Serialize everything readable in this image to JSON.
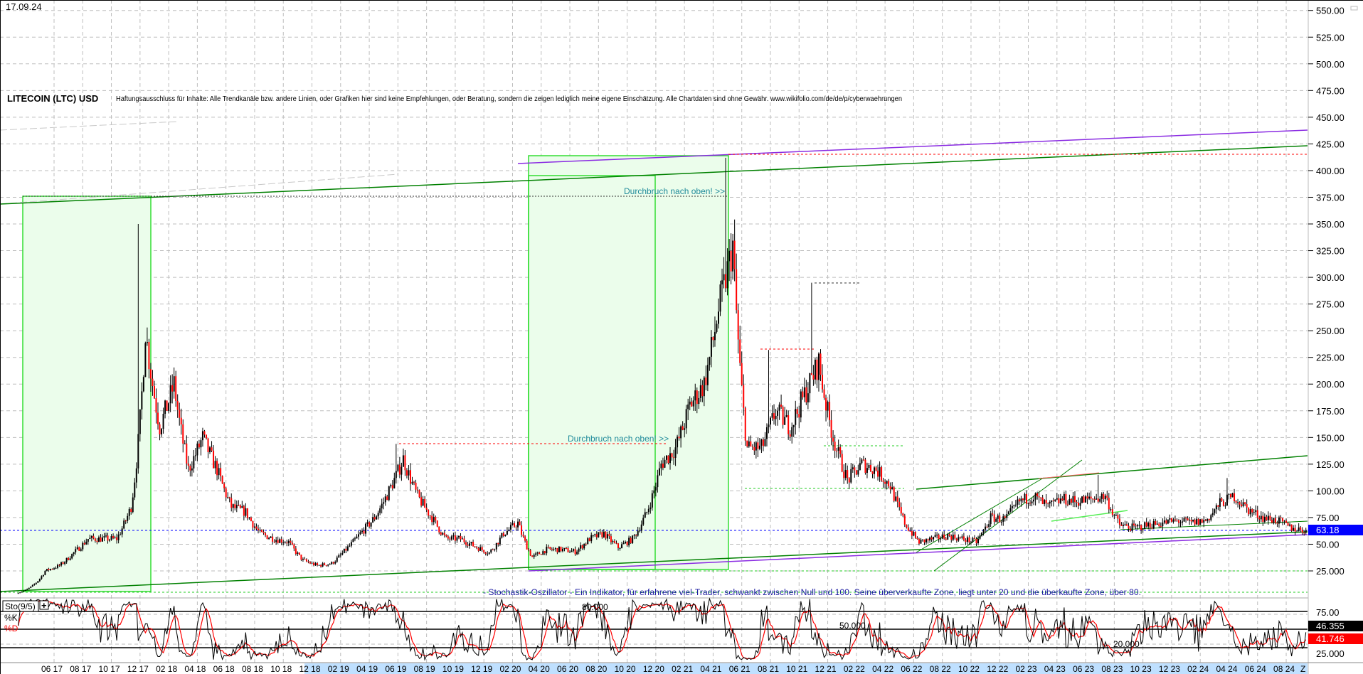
{
  "header": {
    "date": "17.09.24",
    "title": "LITECOIN (LTC) USD",
    "disclaimer": "Haftungsausschluss für Inhalte: Alle Trendkanäle bzw. andere Linien, oder Grafiken hier sind keine Empfehlungen, oder Beratung, sondern die zeigen lediglich meine eigene Einschätzung. Alle Chartdaten sind ohne Gewähr.  www.wikifolio.com/de/de/p/cyberwaehrungen"
  },
  "annotations": {
    "breakout_upper": "Durchbruch nach oben! >>",
    "breakout_lower": "Durchbruch nach oben! >>",
    "stoch_note": "- Stochastik-Oszillator - Ein Indikator, für erfahrene viel-Trader, schwankt zwischen Null und 100. Seine überverkaufte Zone, liegt unter 20 und die überkaufte Zone, über 80.",
    "level_80": "80.000",
    "level_50": "50.000",
    "level_20": "20.000"
  },
  "colors": {
    "up": "#000000",
    "down": "#ff0000",
    "zone_fill": "#ebfdeb",
    "zone_border": "#33dd33",
    "trend_green": "#008000",
    "trend_purple": "#8a2be2",
    "last_price_bg": "#0000ff",
    "k_line": "#000000",
    "d_line": "#ff0000"
  },
  "chart_data": [
    {
      "type": "candlestick",
      "title": "LITECOIN (LTC) USD",
      "ylim": [
        0,
        560
      ],
      "y_ticks": [
        "550.00",
        "525.00",
        "500.00",
        "475.00",
        "450.00",
        "425.00",
        "400.00",
        "375.00",
        "350.00",
        "325.00",
        "300.00",
        "275.00",
        "250.00",
        "225.00",
        "200.00",
        "175.00",
        "150.00",
        "125.00",
        "100.00",
        "75.00",
        "50.00",
        "25.000"
      ],
      "x_ticks": [
        "06 17",
        "08 17",
        "10 17",
        "12 17",
        "02 18",
        "04 18",
        "06 18",
        "08 18",
        "10 18",
        "12 18",
        "02 19",
        "04 19",
        "06 19",
        "08 19",
        "10 19",
        "12 19",
        "02 20",
        "04 20",
        "06 20",
        "08 20",
        "10 20",
        "12 20",
        "02 21",
        "04 21",
        "06 21",
        "08 21",
        "10 21",
        "12 21",
        "02 22",
        "04 22",
        "06 22",
        "08 22",
        "10 22",
        "12 22",
        "02 23",
        "04 23",
        "06 23",
        "08 23",
        "10 23",
        "12 23",
        "02 24",
        "04 24",
        "06 24",
        "08 24"
      ],
      "x_end_label": "Z",
      "grid": true,
      "last_price": "63.18",
      "monthly_start": "2017-03",
      "monthly_close_approx": [
        4,
        10,
        25,
        30,
        42,
        55,
        55,
        55,
        85,
        250,
        160,
        200,
        120,
        150,
        120,
        85,
        80,
        60,
        55,
        52,
        35,
        30,
        32,
        45,
        60,
        75,
        100,
        130,
        95,
        75,
        55,
        55,
        48,
        42,
        60,
        70,
        38,
        45,
        45,
        43,
        55,
        60,
        47,
        55,
        80,
        125,
        140,
        180,
        200,
        270,
        330,
        140,
        140,
        175,
        160,
        190,
        220,
        150,
        110,
        125,
        120,
        105,
        70,
        52,
        55,
        58,
        55,
        52,
        75,
        73,
        90,
        95,
        85,
        92,
        90,
        92,
        95,
        68,
        65,
        68,
        70,
        72,
        70,
        72,
        88,
        95,
        82,
        75,
        72,
        65,
        63
      ],
      "notable_highs": [
        {
          "month": "2017-12",
          "value": 350
        },
        {
          "month": "2021-05",
          "value": 412
        },
        {
          "month": "2021-11",
          "value": 295
        },
        {
          "month": "2021-08",
          "value": 232
        },
        {
          "month": "2019-06",
          "value": 144
        },
        {
          "month": "2023-07",
          "value": 115
        },
        {
          "month": "2024-04",
          "value": 112
        }
      ],
      "reference_levels": [
        415,
        375,
        295,
        232,
        144,
        142,
        103,
        63.18,
        25,
        5
      ]
    },
    {
      "type": "line",
      "title": "Sto(9/5)",
      "series": [
        {
          "name": "%K",
          "last": "46.355"
        },
        {
          "name": "%D",
          "last": "41.746"
        }
      ],
      "ylim": [
        0,
        100
      ],
      "y_ticks": [
        "75.00",
        "25.000"
      ],
      "levels": [
        80,
        50,
        20
      ]
    }
  ]
}
